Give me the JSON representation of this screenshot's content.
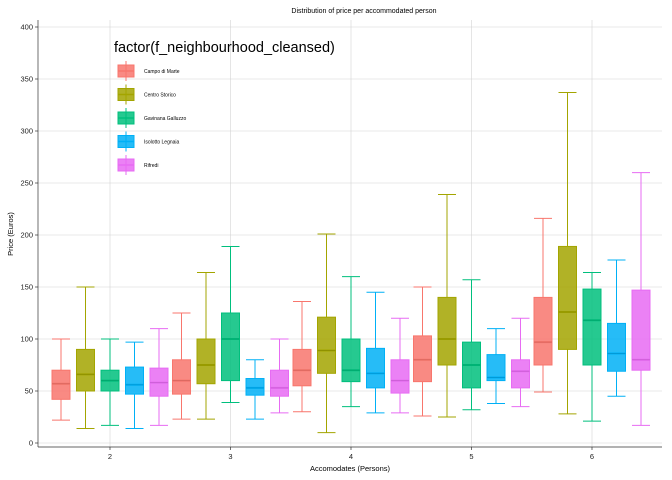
{
  "chart_data": {
    "type": "boxplot",
    "title": "Distribution of price per accommodated person",
    "xlabel": "Accomodates (Persons)",
    "ylabel": "Price (Euros)",
    "ylim": [
      0,
      400
    ],
    "yticks": [
      0,
      50,
      100,
      150,
      200,
      250,
      300,
      350,
      400
    ],
    "grid": true,
    "categories": [
      "2",
      "3",
      "4",
      "5",
      "6"
    ],
    "legend": {
      "title": "factor(f_neighbourhood_cleansed)",
      "placement": "top-left inside"
    },
    "series": [
      {
        "name": "Campo di Marte",
        "color": "#F8766D",
        "boxes": [
          {
            "min": 22,
            "q1": 42,
            "median": 57,
            "q3": 70,
            "max": 100
          },
          {
            "min": 23,
            "q1": 47,
            "median": 60,
            "q3": 80,
            "max": 125
          },
          {
            "min": 30,
            "q1": 55,
            "median": 70,
            "q3": 90,
            "max": 136
          },
          {
            "min": 26,
            "q1": 59,
            "median": 80,
            "q3": 103,
            "max": 150
          },
          {
            "min": 49,
            "q1": 75,
            "median": 97,
            "q3": 140,
            "max": 216
          }
        ]
      },
      {
        "name": "Centro Storico",
        "color": "#A3A500",
        "boxes": [
          {
            "min": 14,
            "q1": 50,
            "median": 66,
            "q3": 90,
            "max": 150
          },
          {
            "min": 23,
            "q1": 57,
            "median": 75,
            "q3": 100,
            "max": 164
          },
          {
            "min": 10,
            "q1": 67,
            "median": 89,
            "q3": 121,
            "max": 201
          },
          {
            "min": 25,
            "q1": 75,
            "median": 100,
            "q3": 140,
            "max": 239
          },
          {
            "min": 28,
            "q1": 90,
            "median": 126,
            "q3": 189,
            "max": 337
          }
        ]
      },
      {
        "name": "Gavinana Galluzzo",
        "color": "#00BF7D",
        "boxes": [
          {
            "min": 17,
            "q1": 50,
            "median": 60,
            "q3": 70,
            "max": 100
          },
          {
            "min": 39,
            "q1": 60,
            "median": 100,
            "q3": 125,
            "max": 189
          },
          {
            "min": 35,
            "q1": 59,
            "median": 70,
            "q3": 100,
            "max": 160
          },
          {
            "min": 32,
            "q1": 53,
            "median": 75,
            "q3": 97,
            "max": 157
          },
          {
            "min": 21,
            "q1": 75,
            "median": 118,
            "q3": 148,
            "max": 164
          }
        ]
      },
      {
        "name": "Isolotto Legnaia",
        "color": "#00B0F6",
        "boxes": [
          {
            "min": 14,
            "q1": 47,
            "median": 56,
            "q3": 73,
            "max": 97
          },
          {
            "min": 23,
            "q1": 46,
            "median": 53,
            "q3": 62,
            "max": 80
          },
          {
            "min": 29,
            "q1": 53,
            "median": 67,
            "q3": 91,
            "max": 145
          },
          {
            "min": 38,
            "q1": 60,
            "median": 63,
            "q3": 85,
            "max": 110
          },
          {
            "min": 45,
            "q1": 69,
            "median": 86,
            "q3": 115,
            "max": 176
          }
        ]
      },
      {
        "name": "Rifredi",
        "color": "#E76BF3",
        "boxes": [
          {
            "min": 17,
            "q1": 45,
            "median": 58,
            "q3": 72,
            "max": 110
          },
          {
            "min": 29,
            "q1": 45,
            "median": 53,
            "q3": 70,
            "max": 100
          },
          {
            "min": 29,
            "q1": 48,
            "median": 60,
            "q3": 80,
            "max": 120
          },
          {
            "min": 35,
            "q1": 53,
            "median": 69,
            "q3": 80,
            "max": 120
          },
          {
            "min": 17,
            "q1": 70,
            "median": 80,
            "q3": 147,
            "max": 260
          }
        ]
      }
    ]
  }
}
